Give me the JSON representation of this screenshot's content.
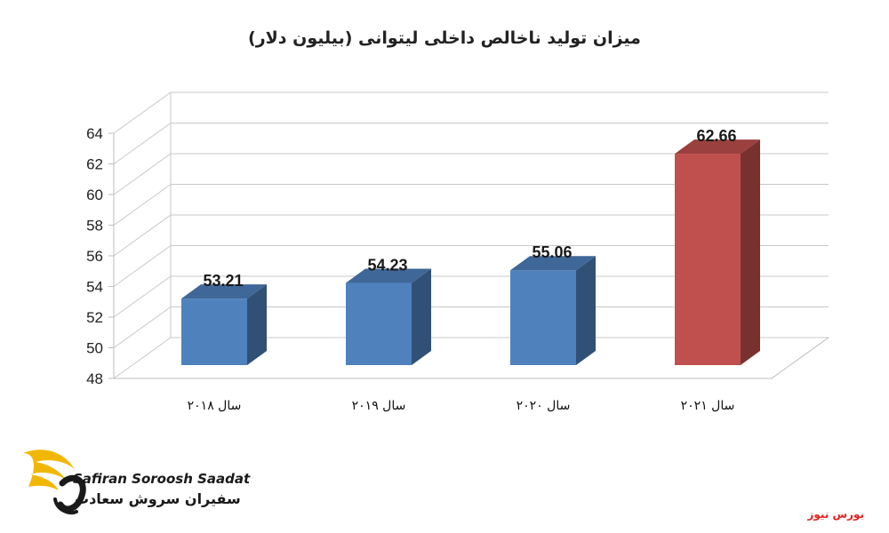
{
  "chart_data": {
    "type": "bar",
    "title": "میزان تولید ناخالص داخلی لیتوانی (بیلیون دلار)",
    "categories": [
      "سال ۲۰۱۸",
      "سال ۲۰۱۹",
      "سال ۲۰۲۰",
      "سال ۲۰۲۱"
    ],
    "values": [
      53.21,
      54.23,
      55.06,
      62.66
    ],
    "value_labels": [
      "53.21",
      "54.23",
      "55.06",
      "62.66"
    ],
    "bar_colors": [
      "#4f81bd",
      "#4f81bd",
      "#4f81bd",
      "#c0504d"
    ],
    "ylim": [
      48,
      64
    ],
    "yticks": [
      48,
      50,
      52,
      54,
      56,
      58,
      60,
      62,
      64
    ],
    "grid": true,
    "style": "3d-column",
    "xlabel": "",
    "ylabel": ""
  },
  "logo": {
    "latin": "Safiran Soroosh Saadat",
    "persian": "سفیران سروش سعادت",
    "accent_color": "#f2b705"
  },
  "source": "بورس نیوز"
}
